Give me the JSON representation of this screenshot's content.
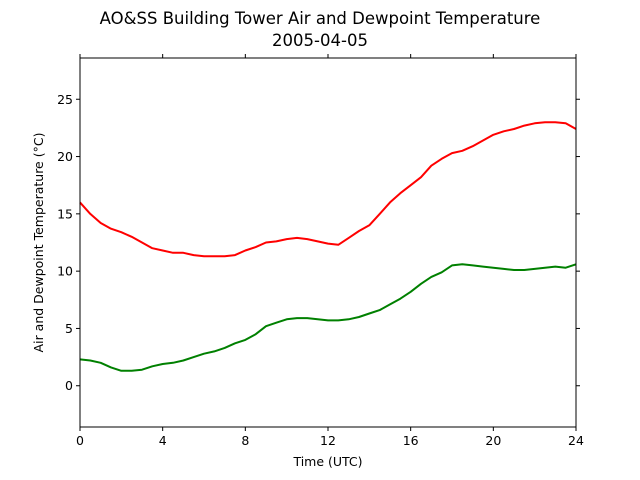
{
  "chart_data": {
    "type": "line",
    "title": "AO&SS Building Tower Air and Dewpoint Temperature",
    "subtitle": "2005-04-05",
    "xlabel": "Time (UTC)",
    "ylabel": "Air and Dewpoint Temperature (°C)",
    "xlim": [
      0,
      24
    ],
    "ylim": [
      -3.6,
      28.6
    ],
    "xticks": [
      0,
      4,
      8,
      12,
      16,
      20,
      24
    ],
    "yticks": [
      0,
      5,
      10,
      15,
      20,
      25
    ],
    "grid": false,
    "legend": "none",
    "x": [
      0,
      0.5,
      1,
      1.5,
      2,
      2.5,
      3,
      3.5,
      4,
      4.5,
      5,
      5.5,
      6,
      6.5,
      7,
      7.5,
      8,
      8.5,
      9,
      9.5,
      10,
      10.5,
      11,
      11.5,
      12,
      12.5,
      13,
      13.5,
      14,
      14.5,
      15,
      15.5,
      16,
      16.5,
      17,
      17.5,
      18,
      18.5,
      19,
      19.5,
      20,
      20.5,
      21,
      21.5,
      22,
      22.5,
      23,
      23.5,
      24
    ],
    "series": [
      {
        "color": "#ff0000",
        "values": [
          16.0,
          15.0,
          14.2,
          13.7,
          13.4,
          13.0,
          12.5,
          12.0,
          11.8,
          11.6,
          11.6,
          11.4,
          11.3,
          11.3,
          11.3,
          11.4,
          11.8,
          12.1,
          12.5,
          12.6,
          12.8,
          12.9,
          12.8,
          12.6,
          12.4,
          12.3,
          12.9,
          13.5,
          14.0,
          15.0,
          16.0,
          16.8,
          17.5,
          18.2,
          19.2,
          19.8,
          20.3,
          20.5,
          20.9,
          21.4,
          21.9,
          22.2,
          22.4,
          22.7,
          22.9,
          23.0,
          23.0,
          22.9,
          22.4
        ]
      },
      {
        "color": "#008000",
        "values": [
          2.3,
          2.2,
          2.0,
          1.6,
          1.3,
          1.3,
          1.4,
          1.7,
          1.9,
          2.0,
          2.2,
          2.5,
          2.8,
          3.0,
          3.3,
          3.7,
          4.0,
          4.5,
          5.2,
          5.5,
          5.8,
          5.9,
          5.9,
          5.8,
          5.7,
          5.7,
          5.8,
          6.0,
          6.3,
          6.6,
          7.1,
          7.6,
          8.2,
          8.9,
          9.5,
          9.9,
          10.5,
          10.6,
          10.5,
          10.4,
          10.3,
          10.2,
          10.1,
          10.1,
          10.2,
          10.3,
          10.4,
          10.3,
          10.6
        ]
      }
    ]
  }
}
